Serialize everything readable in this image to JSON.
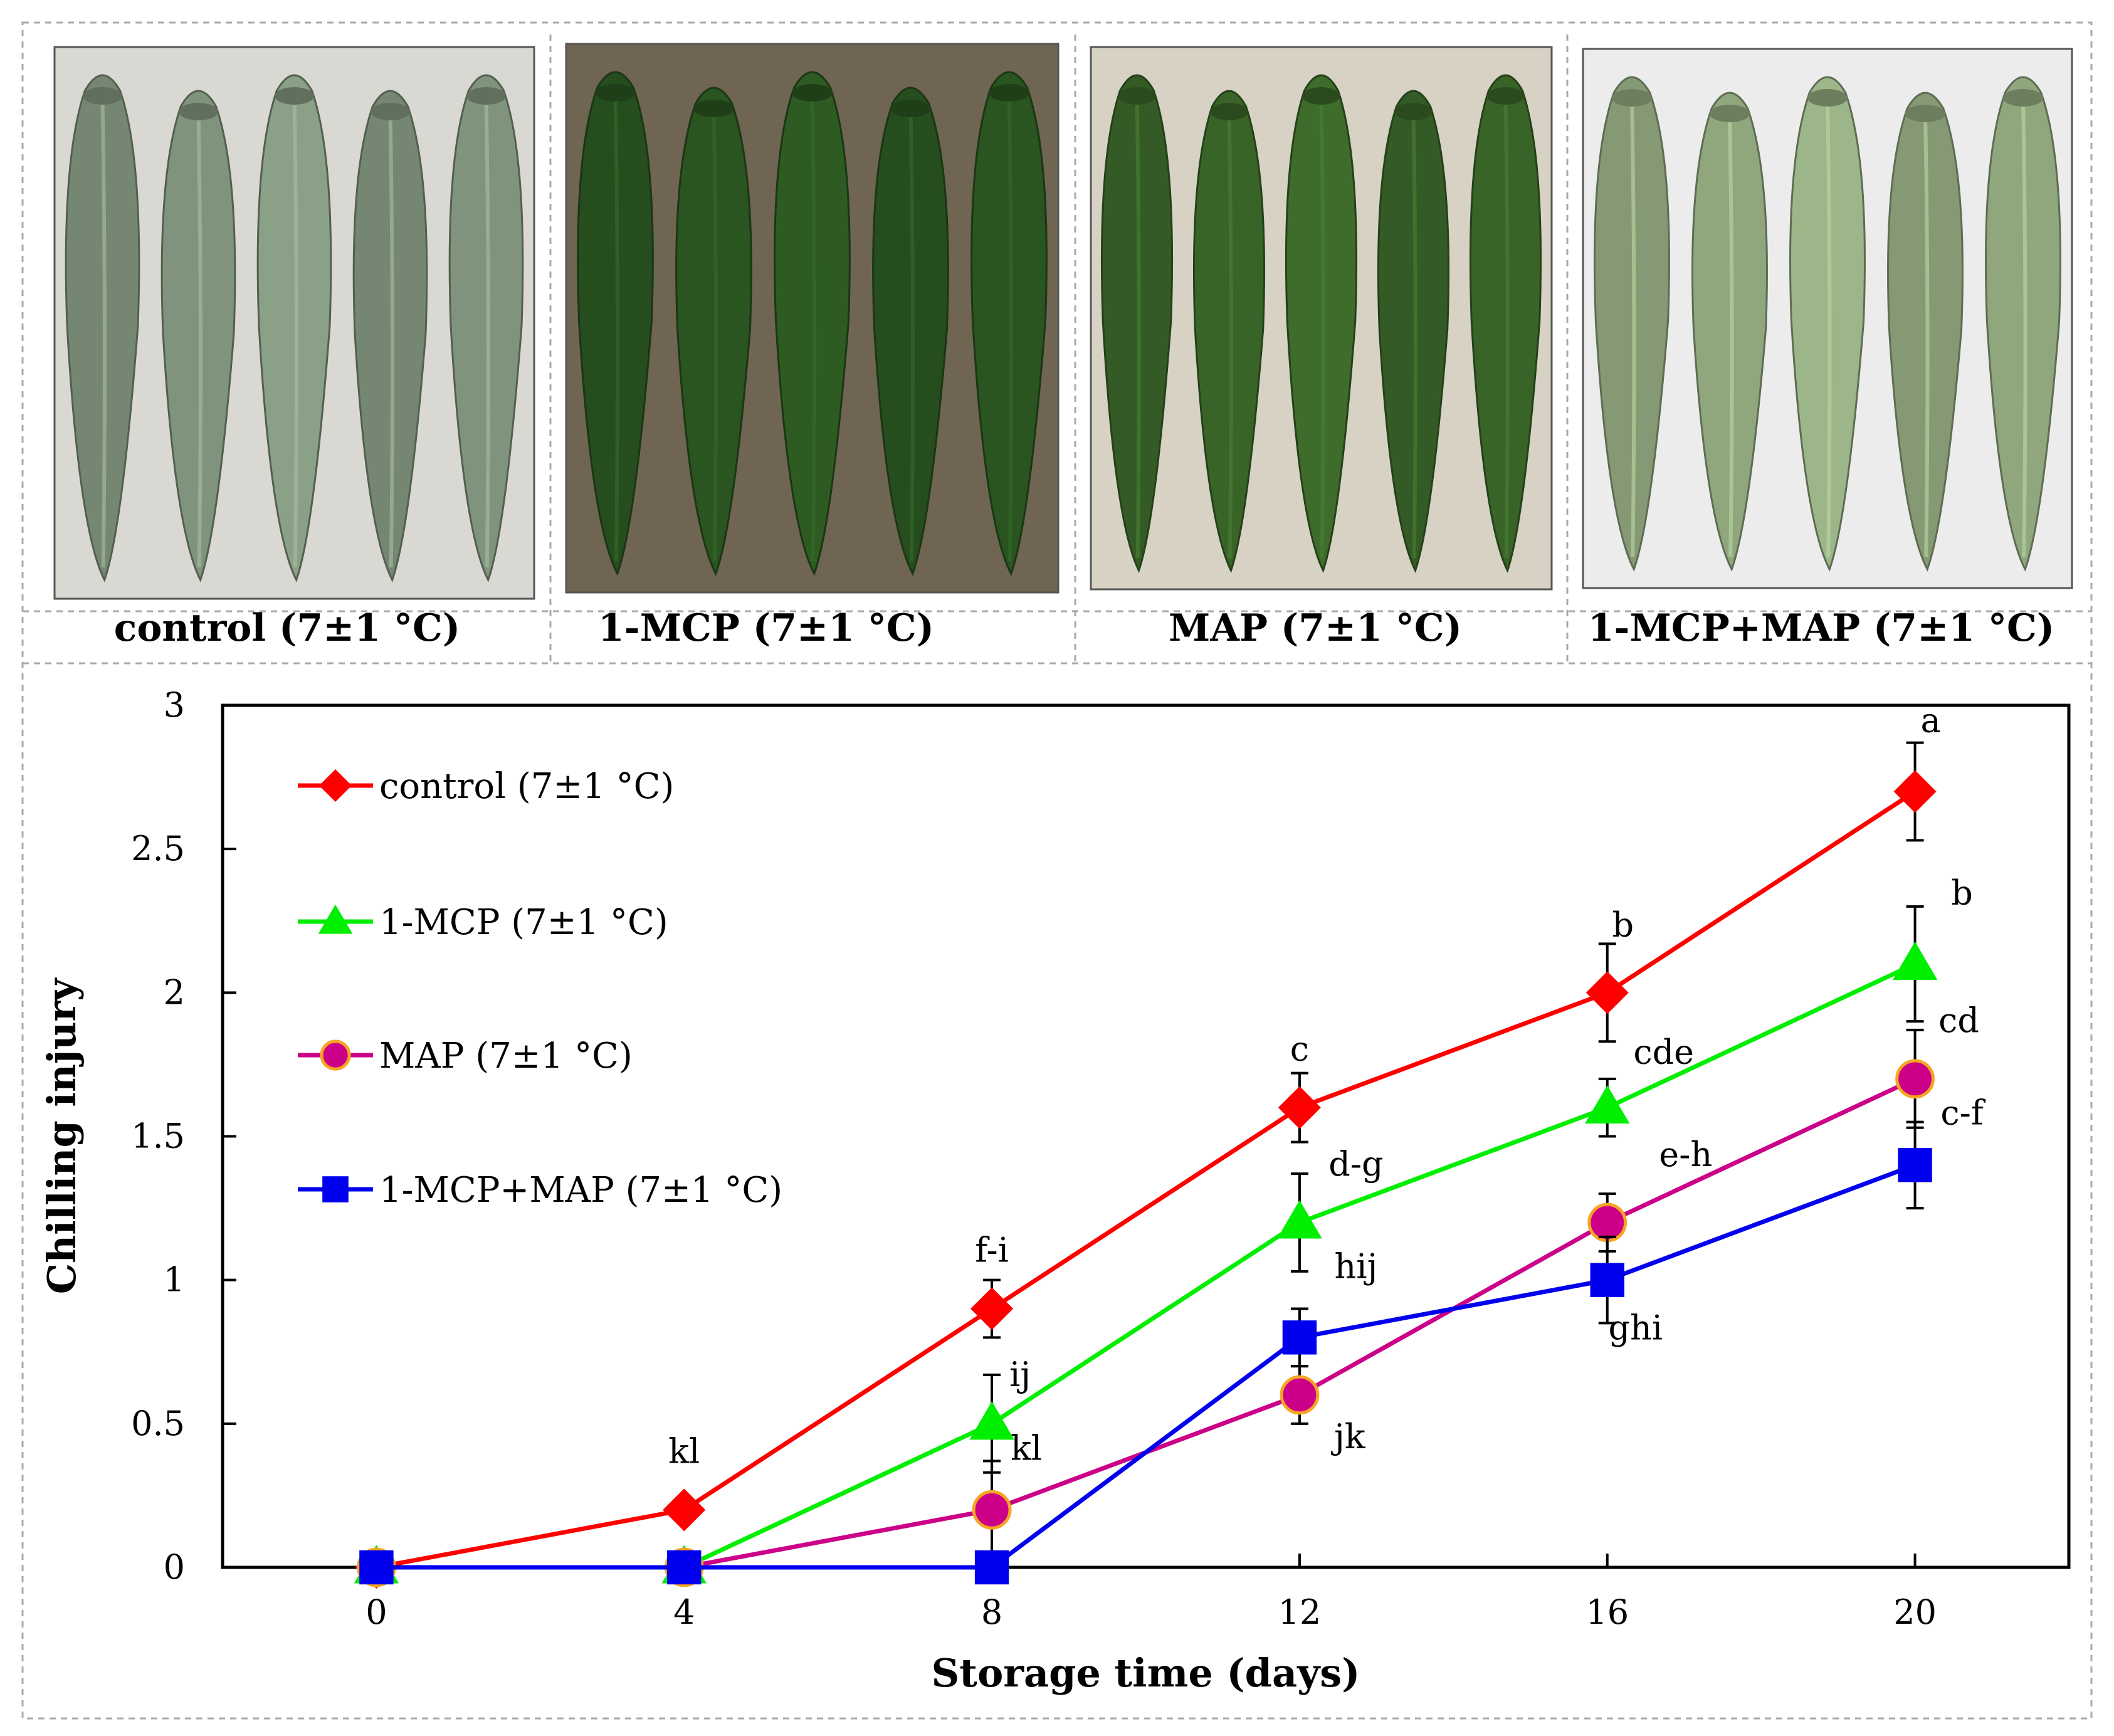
{
  "photos": [
    {
      "caption": "control (7±1 °C)",
      "tone": "#8a9f86"
    },
    {
      "caption": "1-MCP (7±1 °C)",
      "tone": "#2d5a22"
    },
    {
      "caption": "MAP (7±1 °C)",
      "tone": "#3d6b2b"
    },
    {
      "caption": "1-MCP+MAP (7±1 °C)",
      "tone": "#9bb488"
    }
  ],
  "chart_data": {
    "type": "line",
    "xlabel": "Storage time (days)",
    "ylabel": "Chilling injury",
    "x": [
      0,
      4,
      8,
      12,
      16,
      20
    ],
    "xlim": [
      -2,
      22
    ],
    "ylim": [
      0,
      3
    ],
    "yticks": [
      0,
      0.5,
      1,
      1.5,
      2,
      2.5,
      3
    ],
    "xticks": [
      0,
      4,
      8,
      12,
      16,
      20
    ],
    "legend_position": "top-left",
    "series": [
      {
        "name": "control (7±1 °C)",
        "color": "#ff0000",
        "marker": "diamond",
        "values": [
          0,
          0.2,
          0.9,
          1.6,
          2.0,
          2.7
        ],
        "errors": [
          0,
          0,
          0.1,
          0.12,
          0.17,
          0.17
        ],
        "letters": [
          "",
          "kl",
          "f-i",
          "c",
          "b",
          "a"
        ]
      },
      {
        "name": "1-MCP (7±1 °C)",
        "color": "#00ee00",
        "marker": "triangle",
        "values": [
          0,
          0,
          0.5,
          1.2,
          1.6,
          2.1
        ],
        "errors": [
          0,
          0,
          0.17,
          0.17,
          0.1,
          0.2
        ],
        "letters": [
          "",
          "",
          "ij",
          "d-g",
          "cde",
          "b"
        ]
      },
      {
        "name": "MAP (7±1 °C)",
        "color": "#cc0088",
        "marker": "circle",
        "values": [
          0,
          0,
          0.2,
          0.6,
          1.2,
          1.7
        ],
        "errors": [
          0,
          0,
          0.17,
          0.1,
          0.1,
          0.17
        ],
        "letters": [
          "",
          "",
          "kl",
          "jk",
          "e-h",
          "cd"
        ]
      },
      {
        "name": "1-MCP+MAP (7±1 °C)",
        "color": "#0000ee",
        "marker": "square",
        "values": [
          0,
          0,
          0,
          0.8,
          1.0,
          1.4
        ],
        "errors": [
          0,
          0,
          0,
          0.1,
          0.15,
          0.15
        ],
        "letters": [
          "",
          "",
          "",
          "hij",
          "ghi",
          "c-f"
        ]
      }
    ]
  }
}
